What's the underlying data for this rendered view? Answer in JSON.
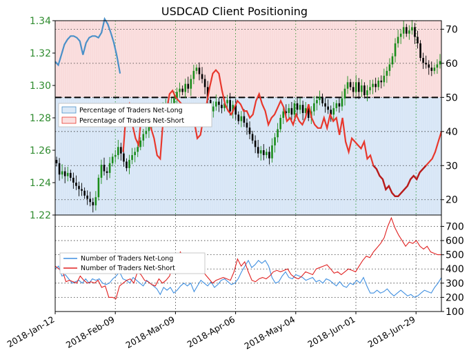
{
  "chart_data": [
    {
      "type": "line",
      "title": "USDCAD Client Positioning",
      "description_axes": "left axis = USDCAD price, right axis = percentage",
      "price_ylim": [
        1.22,
        1.34
      ],
      "price_ticks": [
        "1.22",
        "1.24",
        "1.26",
        "1.28",
        "1.30",
        "1.32",
        "1.34"
      ],
      "pct_ticks": [
        "20",
        "30",
        "40",
        "50",
        "60",
        "70"
      ],
      "pct_ylim": [
        15.5,
        72.5
      ],
      "reference_line": 50,
      "legend": [
        "Percentage of Traders Net-Long",
        "Percentage of Traders Net-Short"
      ],
      "colors": {
        "net_long": "#4a90c8",
        "net_short": "#e8372c",
        "net_short_dark": "#b71c1c",
        "price": "#2e8b2e",
        "price_up": "#1a8c1a",
        "price_down": "#000000",
        "long_fill": "#dce9f7",
        "short_fill": "#fbe0e0"
      },
      "x_dates": [
        "2018-01-12",
        "2018-07-09"
      ],
      "price_close": [
        1.252,
        1.245,
        1.247,
        1.244,
        1.246,
        1.243,
        1.24,
        1.238,
        1.236,
        1.235,
        1.232,
        1.23,
        1.228,
        1.226,
        1.231,
        1.243,
        1.251,
        1.247,
        1.246,
        1.252,
        1.256,
        1.257,
        1.262,
        1.258,
        1.253,
        1.249,
        1.254,
        1.257,
        1.259,
        1.262,
        1.266,
        1.27,
        1.272,
        1.275,
        1.279,
        1.281,
        1.284,
        1.283,
        1.287,
        1.288,
        1.286,
        1.289,
        1.292,
        1.296,
        1.298,
        1.296,
        1.301,
        1.298,
        1.304,
        1.309,
        1.311,
        1.307,
        1.304,
        1.299,
        1.291,
        1.284,
        1.287,
        1.29,
        1.288,
        1.286,
        1.289,
        1.291,
        1.284,
        1.288,
        1.282,
        1.278,
        1.281,
        1.277,
        1.274,
        1.27,
        1.266,
        1.262,
        1.258,
        1.26,
        1.257,
        1.259,
        1.255,
        1.263,
        1.268,
        1.273,
        1.28,
        1.284,
        1.283,
        1.286,
        1.282,
        1.289,
        1.285,
        1.288,
        1.283,
        1.286,
        1.28,
        1.284,
        1.289,
        1.291,
        1.293,
        1.289,
        1.287,
        1.285,
        1.282,
        1.286,
        1.289,
        1.287,
        1.292,
        1.298,
        1.302,
        1.299,
        1.296,
        1.302,
        1.296,
        1.3,
        1.294,
        1.297,
        1.299,
        1.301,
        1.299,
        1.303,
        1.302,
        1.306,
        1.309,
        1.313,
        1.318,
        1.326,
        1.33,
        1.332,
        1.336,
        1.332,
        1.334,
        1.336,
        1.33,
        1.326,
        1.317,
        1.314,
        1.313,
        1.311,
        1.309,
        1.311,
        1.313,
        1.315
      ],
      "pct_net_long": [
        60.5,
        59.5,
        62.5,
        65.5,
        67,
        68,
        68,
        67.5,
        66.5,
        62.5,
        66,
        67.5,
        68,
        68,
        67.5,
        69,
        73,
        71.5,
        69,
        66,
        62,
        57
      ],
      "pct_net_short": [
        34,
        46,
        48,
        42,
        38,
        36,
        46,
        45,
        43,
        41,
        38,
        33,
        32,
        44,
        46,
        51,
        52,
        50,
        49,
        48,
        47,
        46,
        44,
        43,
        38,
        39,
        44,
        48,
        53,
        57,
        58,
        57,
        52,
        48,
        46,
        45,
        47,
        49,
        48,
        46,
        46,
        44,
        45,
        49,
        51,
        48,
        46,
        42,
        44,
        45,
        47,
        49,
        47,
        43,
        44,
        42,
        45,
        43,
        42,
        44,
        48,
        44,
        42,
        41,
        41,
        44,
        41,
        45,
        43,
        44,
        39,
        44,
        37,
        34,
        38,
        37,
        36,
        35,
        37,
        32,
        33,
        30,
        29,
        27,
        26,
        23,
        24,
        22,
        21,
        21,
        22,
        23,
        24,
        26,
        27,
        26,
        28,
        29,
        30,
        31,
        32,
        34,
        37,
        40
      ],
      "pct_net_long_tail_from_index": 21
    },
    {
      "type": "line",
      "yticks": [
        "200",
        "300",
        "400",
        "500",
        "600",
        "700"
      ],
      "ylim": [
        100,
        780
      ],
      "legend": [
        "Number of Traders Net-Long",
        "Number of Traders Net-Short"
      ],
      "colors": {
        "net_long": "#3f8fe0",
        "net_short": "#e02020"
      },
      "num_net_long": [
        400,
        420,
        350,
        360,
        330,
        300,
        310,
        320,
        300,
        330,
        300,
        330,
        320,
        330,
        300,
        290,
        300,
        330,
        350,
        380,
        330,
        320,
        300,
        340,
        320,
        300,
        280,
        320,
        300,
        280,
        260,
        220,
        270,
        250,
        270,
        230,
        250,
        280,
        300,
        280,
        300,
        240,
        280,
        320,
        300,
        280,
        310,
        270,
        290,
        320,
        330,
        310,
        290,
        300,
        330,
        380,
        420,
        460,
        410,
        430,
        460,
        440,
        460,
        420,
        340,
        300,
        310,
        350,
        380,
        340,
        330,
        360,
        350,
        340,
        320,
        330,
        340,
        310,
        320,
        300,
        330,
        320,
        300,
        280,
        310,
        280,
        270,
        300,
        290,
        320,
        300,
        340,
        280,
        230,
        230,
        250,
        230,
        240,
        260,
        230,
        210,
        230,
        250,
        230,
        210,
        220,
        200,
        210,
        230,
        250,
        240,
        230,
        270,
        300,
        340
      ],
      "num_net_short": [
        420,
        400,
        390,
        310,
        320,
        310,
        300,
        350,
        320,
        300,
        310,
        300,
        320,
        270,
        280,
        200,
        200,
        190,
        280,
        300,
        320,
        330,
        300,
        380,
        360,
        320,
        310,
        290,
        280,
        330,
        300,
        320,
        350,
        440,
        460,
        520,
        470,
        500,
        420,
        390,
        410,
        400,
        360,
        330,
        300,
        320,
        330,
        340,
        330,
        320,
        380,
        470,
        420,
        450,
        380,
        320,
        310,
        330,
        340,
        330,
        350,
        380,
        390,
        380,
        390,
        400,
        360,
        340,
        330,
        350,
        380,
        370,
        360,
        400,
        410,
        420,
        430,
        400,
        370,
        380,
        360,
        380,
        400,
        390,
        380,
        420,
        460,
        490,
        480,
        520,
        550,
        580,
        620,
        700,
        760,
        690,
        640,
        600,
        560,
        590,
        580,
        600,
        560,
        540,
        560,
        520,
        510,
        500,
        500
      ]
    }
  ],
  "x_axis": {
    "labels": [
      "2018-Jan-12",
      "2018-Feb-09",
      "2018-Mar-09",
      "2018-Apr-06",
      "2018-May-04",
      "2018-Jun-01",
      "2018-Jun-29"
    ]
  }
}
